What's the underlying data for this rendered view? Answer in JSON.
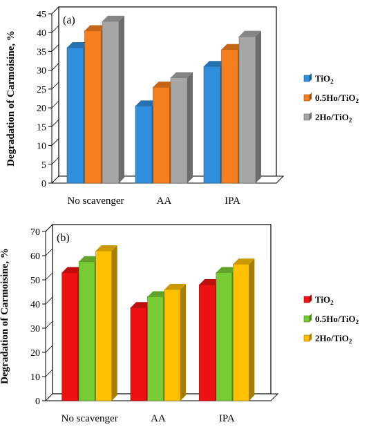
{
  "chart_data": [
    {
      "type": "bar",
      "panel_label": "(a)",
      "ylabel": "Degradation of Carmoisine, %",
      "xlabel": "",
      "categories": [
        "No scavenger",
        "AA",
        "IPA"
      ],
      "yticks": [
        0,
        5,
        10,
        15,
        20,
        25,
        30,
        35,
        40,
        45
      ],
      "ylim": [
        0,
        45
      ],
      "grid": false,
      "legend_position": "right",
      "series": [
        {
          "name": "TiO2",
          "name_main": "TiO",
          "name_sub": "2",
          "color": "#2f8fdc",
          "values": [
            36,
            20.5,
            31
          ]
        },
        {
          "name": "0.5Ho/TiO2",
          "name_main": "0.5Ho/TiO",
          "name_sub": "2",
          "color": "#f57f1f",
          "values": [
            40.5,
            25.5,
            35.5
          ]
        },
        {
          "name": "2Ho/TiO2",
          "name_main": "2Ho/TiO",
          "name_sub": "2",
          "color": "#a6a6a6",
          "values": [
            43,
            28,
            39
          ]
        }
      ]
    },
    {
      "type": "bar",
      "panel_label": "(b)",
      "ylabel": "Degradation of Carmoisine, %",
      "xlabel": "",
      "categories": [
        "No scavenger",
        "AA",
        "IPA"
      ],
      "yticks": [
        0,
        10,
        20,
        30,
        40,
        50,
        60,
        70
      ],
      "ylim": [
        0,
        70
      ],
      "grid": false,
      "legend_position": "right",
      "series": [
        {
          "name": "TiO2",
          "name_main": "TiO",
          "name_sub": "2",
          "color": "#ee1111",
          "values": [
            53,
            38.5,
            48
          ]
        },
        {
          "name": "0.5Ho/TiO2",
          "name_main": "0.5Ho/TiO",
          "name_sub": "2",
          "color": "#77cc33",
          "values": [
            57.5,
            43,
            53
          ]
        },
        {
          "name": "2Ho/TiO2",
          "name_main": "2Ho/TiO",
          "name_sub": "2",
          "color": "#ffc000",
          "values": [
            62,
            46,
            56.5
          ]
        }
      ]
    }
  ]
}
